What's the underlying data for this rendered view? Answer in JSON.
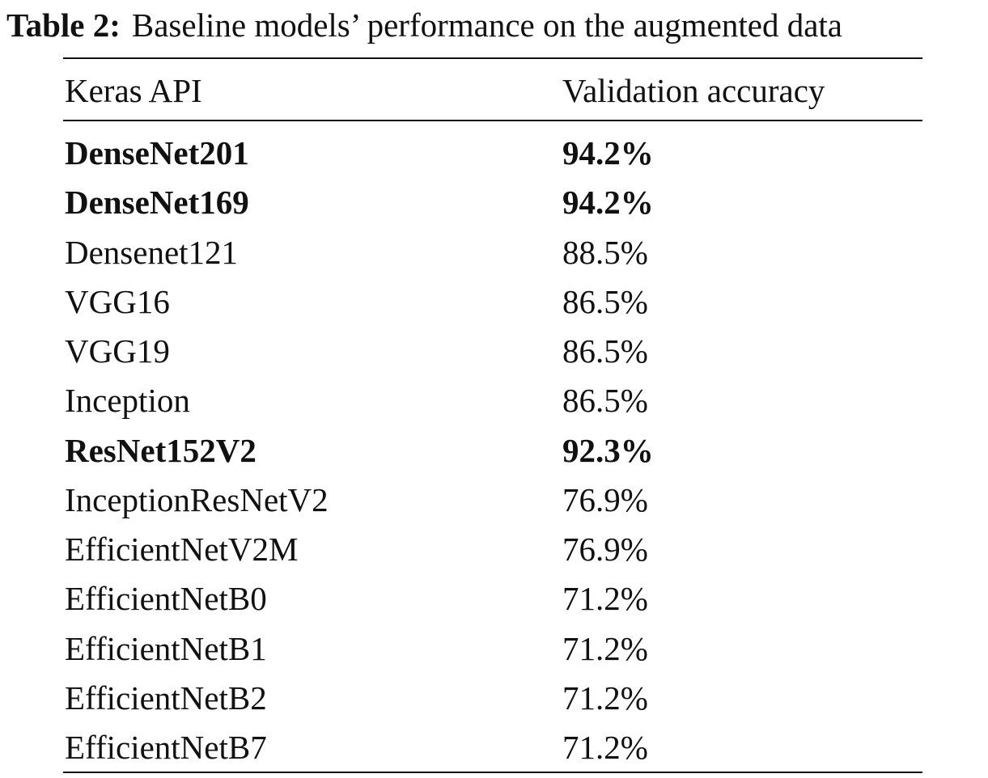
{
  "table": {
    "caption_label": "Table 2:",
    "caption": "Baseline models’ performance on the augmented data",
    "header": [
      "Keras API",
      "Validation accuracy"
    ],
    "rows": [
      {
        "cells": [
          "DenseNet201",
          "94.2%"
        ],
        "bold": true
      },
      {
        "cells": [
          "DenseNet169",
          "94.2%"
        ],
        "bold": true
      },
      {
        "cells": [
          "Densenet121",
          "88.5%"
        ],
        "bold": false
      },
      {
        "cells": [
          "VGG16",
          "86.5%"
        ],
        "bold": false
      },
      {
        "cells": [
          "VGG19",
          "86.5%"
        ],
        "bold": false
      },
      {
        "cells": [
          "Inception",
          "86.5%"
        ],
        "bold": false
      },
      {
        "cells": [
          "ResNet152V2",
          "92.3%"
        ],
        "bold": true
      },
      {
        "cells": [
          "InceptionResNetV2",
          "76.9%"
        ],
        "bold": false
      },
      {
        "cells": [
          "EfficientNetV2M",
          "76.9%"
        ],
        "bold": false
      },
      {
        "cells": [
          "EfficientNetB0",
          "71.2%"
        ],
        "bold": false
      },
      {
        "cells": [
          "EfficientNetB1",
          "71.2%"
        ],
        "bold": false
      },
      {
        "cells": [
          "EfficientNetB2",
          "71.2%"
        ],
        "bold": false
      },
      {
        "cells": [
          "EfficientNetB7",
          "71.2%"
        ],
        "bold": false
      }
    ]
  }
}
